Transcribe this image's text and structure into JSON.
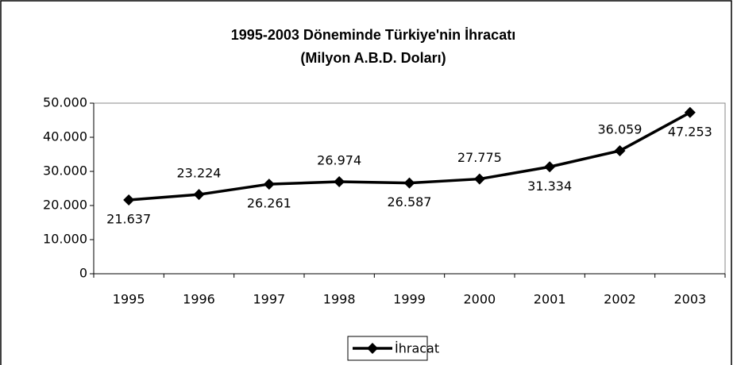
{
  "chart_data": {
    "type": "line",
    "title": "1995-2003 Döneminde Türkiye'nin İhracatı",
    "subtitle": "(Milyon A.B.D. Doları)",
    "categories": [
      "1995",
      "1996",
      "1997",
      "1998",
      "1999",
      "2000",
      "2001",
      "2002",
      "2003"
    ],
    "series": [
      {
        "name": "İhracat",
        "color": "#000000",
        "values": [
          21637,
          23224,
          26261,
          26974,
          26587,
          27775,
          31334,
          36059,
          47253
        ],
        "value_labels": [
          "21.637",
          "23.224",
          "26.261",
          "26.974",
          "26.587",
          "27.775",
          "31.334",
          "36.059",
          "47.253"
        ]
      }
    ],
    "ylim": [
      0,
      50000
    ],
    "yticks": [
      0,
      {
        "value": 10000,
        "label": "10.000"
      },
      {
        "value": 20000,
        "label": "20.000"
      },
      {
        "value": 30000,
        "label": "30.000"
      },
      {
        "value": 40000,
        "label": "40.000"
      },
      {
        "value": 50000,
        "label": "50.000"
      }
    ],
    "legend": "bottom"
  }
}
